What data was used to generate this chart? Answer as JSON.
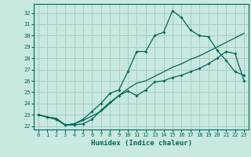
{
  "xlabel": "Humidex (Indice chaleur)",
  "background_color": "#c8e8e0",
  "grid_color": "#a8ccc8",
  "line_color": "#006858",
  "xlim": [
    -0.5,
    23.5
  ],
  "ylim": [
    21.7,
    32.8
  ],
  "yticks": [
    22,
    23,
    24,
    25,
    26,
    27,
    28,
    29,
    30,
    31,
    32
  ],
  "xticks": [
    0,
    1,
    2,
    3,
    4,
    5,
    6,
    7,
    8,
    9,
    10,
    11,
    12,
    13,
    14,
    15,
    16,
    17,
    18,
    19,
    20,
    21,
    22,
    23
  ],
  "line1_x": [
    0,
    1,
    2,
    3,
    4,
    5,
    6,
    7,
    8,
    9,
    10,
    11,
    12,
    13,
    14,
    15,
    16,
    17,
    18,
    19,
    20,
    21,
    22,
    23
  ],
  "line1_y": [
    23.0,
    22.8,
    22.6,
    22.1,
    22.1,
    22.2,
    22.6,
    23.4,
    24.1,
    24.7,
    25.1,
    24.7,
    25.2,
    25.9,
    26.0,
    26.3,
    26.5,
    26.8,
    27.1,
    27.5,
    28.0,
    28.6,
    28.4,
    26.0
  ],
  "line2_x": [
    0,
    1,
    2,
    3,
    4,
    5,
    6,
    7,
    8,
    9,
    10,
    11,
    12,
    13,
    14,
    15,
    16,
    17,
    18,
    19,
    20,
    21,
    22,
    23
  ],
  "line2_y": [
    23.0,
    22.8,
    22.6,
    22.1,
    22.2,
    22.6,
    23.3,
    24.0,
    24.9,
    25.2,
    26.8,
    28.6,
    28.6,
    30.0,
    30.3,
    32.2,
    31.6,
    30.5,
    30.0,
    29.9,
    28.7,
    27.8,
    26.8,
    26.5
  ],
  "line3_x": [
    0,
    1,
    2,
    3,
    4,
    5,
    6,
    7,
    8,
    9,
    10,
    11,
    12,
    13,
    14,
    15,
    16,
    17,
    18,
    19,
    20,
    21,
    22,
    23
  ],
  "line3_y": [
    23.0,
    22.8,
    22.7,
    22.1,
    22.2,
    22.5,
    22.9,
    23.3,
    24.0,
    24.7,
    25.3,
    25.8,
    26.0,
    26.4,
    26.8,
    27.2,
    27.5,
    27.9,
    28.2,
    28.6,
    29.0,
    29.4,
    29.8,
    30.2
  ]
}
